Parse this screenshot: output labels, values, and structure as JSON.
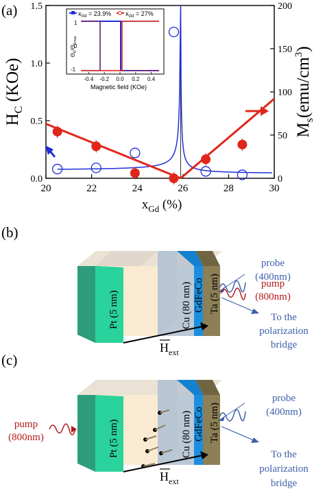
{
  "panel_a": {
    "label": "(a)",
    "xlabel_main": "x",
    "xlabel_sub": "Gd",
    "xlabel_unit": " (%)",
    "ylabel_left_main": "H",
    "ylabel_left_sub": "C",
    "ylabel_left_unit": " (KOe)",
    "ylabel_right_main": "M",
    "ylabel_right_sub": "s",
    "ylabel_right_unit": "(emu/cm",
    "ylabel_right_sup": "3",
    "ylabel_right_close": ")",
    "xticks": [
      "20",
      "22",
      "24",
      "26",
      "28",
      "30"
    ],
    "yticks_left": [
      "0.0",
      "0.5",
      "1.0",
      "1.5"
    ],
    "yticks_right": [
      "0",
      "50",
      "100",
      "150",
      "200"
    ],
    "inset": {
      "legend_1": "x",
      "legend_1_sub": "Gd",
      "legend_1_val": " = 23.9%",
      "legend_2": "x",
      "legend_2_sub": "Gd",
      "legend_2_val": " = 27%",
      "ylabel": "Θ",
      "ylabel_sub": "K",
      "ylabel_mid": "/Θ",
      "ylabel_sub2": "Kmax",
      "xlabel": "Magnetic field (KOe)",
      "xticks": [
        "-0.4",
        "-0.2",
        "0.0",
        "0.2",
        "0.4"
      ],
      "yticks": [
        "1",
        "0",
        "-1"
      ]
    }
  },
  "panel_b": {
    "label": "(b)",
    "layer_pt": "Pt (5 nm)",
    "layer_cu": "Cu (80 nm)",
    "layer_gdfeco": "GdFeCo",
    "layer_ta": "Ta (5 nm)",
    "probe_1": "probe",
    "probe_2": "(400nm)",
    "pump_1": "pump",
    "pump_2": "(800nm)",
    "bridge_1": "To the",
    "bridge_2": "polarization",
    "bridge_3": "bridge",
    "field_main": "H",
    "field_sub": "ext"
  },
  "panel_c": {
    "label": "(c)",
    "layer_pt": "Pt (5 nm)",
    "layer_cu": "Cu (80 nm)",
    "layer_gdfeco": "GdFeCo",
    "layer_ta": "Ta (5 nm)",
    "probe_1": "probe",
    "probe_2": "(400nm)",
    "pump_1": "pump",
    "pump_2": "(800nm)",
    "bridge_1": "To the",
    "bridge_2": "polarization",
    "bridge_3": "bridge",
    "field_main": "H",
    "field_sub": "ext"
  },
  "colors": {
    "hc_blue": "#1f2fd6",
    "ms_red": "#e0261b",
    "pt_green": "#2bd39c",
    "pt_side": "#2d9c7a",
    "cu_block": "#b7c5d3",
    "gdfeco": "#1a8fe0",
    "ta": "#8d7f56",
    "body_beige": "#fbead2",
    "probe_blue": "#3d5fa8",
    "pump_red": "#b21a1a"
  },
  "chart_data": {
    "type": "scatter",
    "x": [
      20.5,
      22.2,
      23.9,
      25.6,
      27.0,
      28.6
    ],
    "series": [
      {
        "axis": "left",
        "values": [
          0.08,
          0.09,
          0.22,
          1.27,
          0.06,
          0.03
        ]
      },
      {
        "axis": "right",
        "values": [
          54,
          37,
          6,
          0,
          22,
          39
        ]
      }
    ],
    "xlim": [
      20,
      30
    ],
    "ylim_left": [
      0,
      1.5
    ],
    "ylim_right": [
      0,
      200
    ],
    "compensation_x": 25.9
  }
}
